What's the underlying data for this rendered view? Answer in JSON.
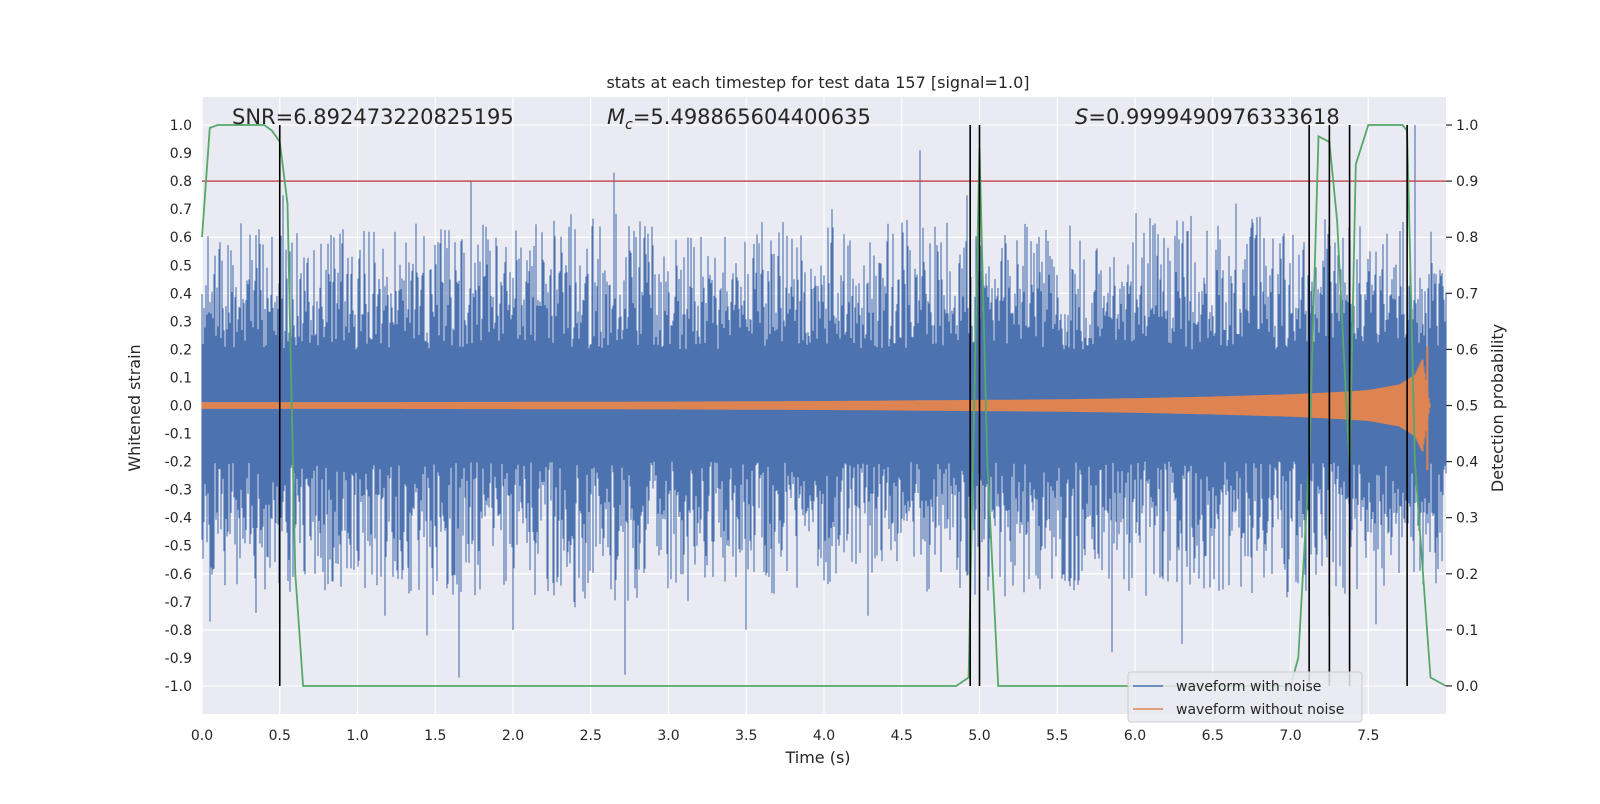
{
  "chart_data": {
    "type": "line",
    "title": "stats at each timestep for test data 157 [signal=1.0]",
    "xlabel": "Time (s)",
    "ylabel": "Whitened strain",
    "y2label": "Detection probability",
    "xlim": [
      0.0,
      8.0
    ],
    "ylim": [
      -1.1,
      1.1
    ],
    "y2lim": [
      -0.05,
      1.05
    ],
    "grid": true,
    "legend_position": "lower-right",
    "x_ticks": [
      "0.0",
      "0.5",
      "1.0",
      "1.5",
      "2.0",
      "2.5",
      "3.0",
      "3.5",
      "4.0",
      "4.5",
      "5.0",
      "5.5",
      "6.0",
      "6.5",
      "7.0",
      "7.5"
    ],
    "y_ticks": [
      "1.0",
      "0.9",
      "0.8",
      "0.7",
      "0.6",
      "0.5",
      "0.4",
      "0.3",
      "0.2",
      "0.1",
      "0.0",
      "-0.1",
      "-0.2",
      "-0.3",
      "-0.4",
      "-0.5",
      "-0.6",
      "-0.7",
      "-0.8",
      "-0.9",
      "-1.0"
    ],
    "y2_ticks": [
      "1.0",
      "0.9",
      "0.8",
      "0.7",
      "0.6",
      "0.5",
      "0.4",
      "0.3",
      "0.2",
      "0.1",
      "0.0"
    ],
    "annotations": {
      "snr": "SNR=6.892473220825195",
      "mc_symbol": "M",
      "mc_subscript": "c",
      "mc_value": "=5.498865604400635",
      "s_symbol": "S",
      "s_value": "=0.9999490976333618"
    },
    "series": [
      {
        "name": "waveform with noise",
        "color": "#4c72b0",
        "envelope_x": [
          0.0,
          0.5,
          1.0,
          1.5,
          2.0,
          2.5,
          3.0,
          3.5,
          4.0,
          4.5,
          5.0,
          5.5,
          6.0,
          6.5,
          7.0,
          7.5,
          8.0
        ],
        "envelope_upper": [
          0.55,
          0.6,
          0.6,
          0.6,
          0.58,
          0.65,
          0.6,
          0.6,
          0.6,
          0.62,
          0.6,
          0.6,
          0.62,
          0.62,
          0.62,
          0.6,
          0.6
        ],
        "envelope_lower": [
          -0.6,
          -0.62,
          -0.6,
          -0.62,
          -0.6,
          -0.65,
          -0.62,
          -0.62,
          -0.6,
          -0.6,
          -0.62,
          -0.62,
          -0.62,
          -0.62,
          -0.65,
          -0.6,
          -0.6
        ],
        "spikes": [
          {
            "x": 0.05,
            "y": -0.77
          },
          {
            "x": 0.25,
            "y": 0.65
          },
          {
            "x": 0.35,
            "y": -0.74
          },
          {
            "x": 0.52,
            "y": 0.75
          },
          {
            "x": 1.18,
            "y": -0.75
          },
          {
            "x": 1.45,
            "y": -0.82
          },
          {
            "x": 1.65,
            "y": -0.97
          },
          {
            "x": 1.73,
            "y": 0.8
          },
          {
            "x": 2.0,
            "y": -0.8
          },
          {
            "x": 2.4,
            "y": -0.72
          },
          {
            "x": 2.65,
            "y": 0.83
          },
          {
            "x": 2.72,
            "y": 0.88
          },
          {
            "x": 2.72,
            "y": -0.96
          },
          {
            "x": 3.5,
            "y": -0.8
          },
          {
            "x": 4.05,
            "y": 0.7
          },
          {
            "x": 4.28,
            "y": -0.75
          },
          {
            "x": 4.62,
            "y": 0.91
          },
          {
            "x": 4.92,
            "y": 0.75
          },
          {
            "x": 5.85,
            "y": -0.88
          },
          {
            "x": 6.3,
            "y": -0.85
          },
          {
            "x": 6.65,
            "y": 0.72
          },
          {
            "x": 7.25,
            "y": -0.75
          },
          {
            "x": 7.55,
            "y": -0.78
          },
          {
            "x": 7.8,
            "y": 1.0
          }
        ]
      },
      {
        "name": "waveform without noise",
        "color": "#dd8452",
        "envelope_x": [
          0.0,
          1.0,
          2.0,
          3.0,
          4.0,
          5.0,
          5.5,
          6.0,
          6.5,
          7.0,
          7.3,
          7.5,
          7.7,
          7.8,
          7.85,
          7.88,
          7.9,
          8.0
        ],
        "envelope_amp": [
          0.012,
          0.012,
          0.013,
          0.014,
          0.016,
          0.02,
          0.022,
          0.026,
          0.032,
          0.04,
          0.048,
          0.055,
          0.075,
          0.11,
          0.17,
          0.06,
          0.0,
          0.0
        ]
      },
      {
        "name": "detection probability",
        "axis": "right",
        "color": "#55a868",
        "x": [
          0.0,
          0.05,
          0.1,
          0.3,
          0.4,
          0.45,
          0.5,
          0.55,
          0.6,
          0.65,
          0.7,
          1.0,
          2.0,
          3.0,
          4.0,
          4.85,
          4.93,
          5.0,
          5.05,
          5.12,
          5.3,
          6.0,
          7.0,
          7.05,
          7.12,
          7.18,
          7.25,
          7.3,
          7.38,
          7.42,
          7.5,
          7.6,
          7.72,
          7.75,
          7.8,
          7.9,
          8.0
        ],
        "y": [
          0.8,
          0.995,
          1.0,
          1.0,
          1.0,
          0.99,
          0.97,
          0.86,
          0.2,
          0.0,
          0.0,
          0.0,
          0.0,
          0.0,
          0.0,
          0.0,
          0.015,
          0.96,
          0.4,
          0.0,
          0.0,
          0.0,
          0.0,
          0.05,
          0.4,
          0.98,
          0.97,
          0.83,
          0.39,
          0.93,
          1.0,
          1.0,
          1.0,
          0.99,
          0.4,
          0.015,
          0.0
        ]
      }
    ],
    "threshold_line": {
      "axis": "right",
      "y": 0.9,
      "color": "#c44e52"
    },
    "vertical_lines": {
      "color": "#000000",
      "x": [
        0.5,
        4.94,
        5.0,
        7.12,
        7.25,
        7.38,
        7.75
      ]
    },
    "legend": [
      {
        "label": "waveform with noise",
        "color": "#4c72b0"
      },
      {
        "label": "waveform without noise",
        "color": "#dd8452"
      }
    ]
  }
}
